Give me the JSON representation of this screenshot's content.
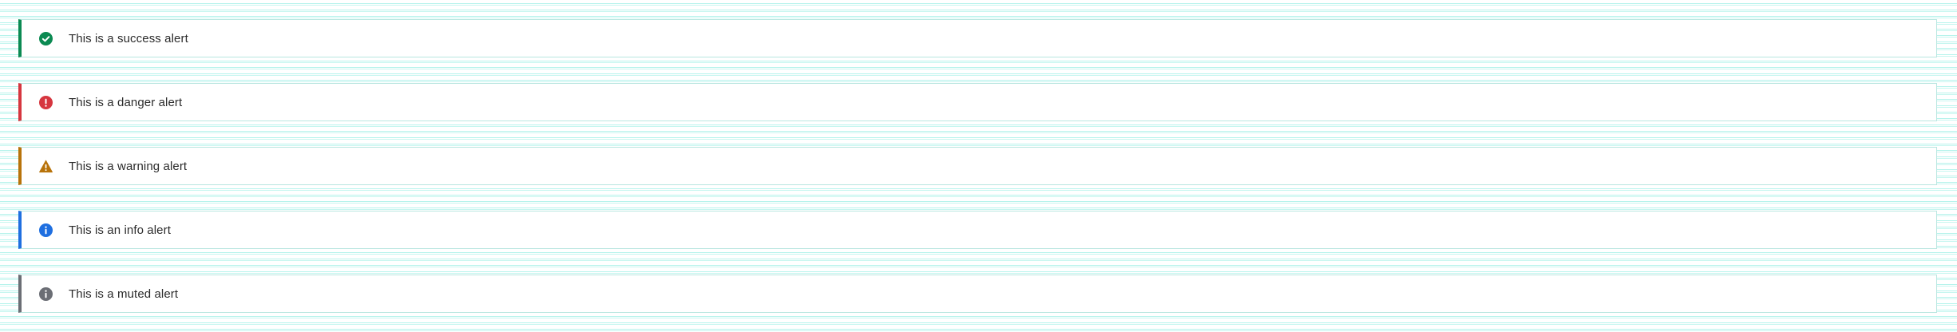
{
  "alerts": [
    {
      "kind": "success",
      "text": "This is a success alert",
      "icon": "check-circle-icon",
      "color": "#0b8a52"
    },
    {
      "kind": "danger",
      "text": "This is a danger alert",
      "icon": "exclamation-circle-icon",
      "color": "#d6363f"
    },
    {
      "kind": "warning",
      "text": "This is a warning alert",
      "icon": "warning-triangle-icon",
      "color": "#b8730a"
    },
    {
      "kind": "info",
      "text": "This is an info alert",
      "icon": "info-circle-icon",
      "color": "#1f6fe0"
    },
    {
      "kind": "muted",
      "text": "This is a muted alert",
      "icon": "info-circle-icon",
      "color": "#6b6e75"
    }
  ]
}
